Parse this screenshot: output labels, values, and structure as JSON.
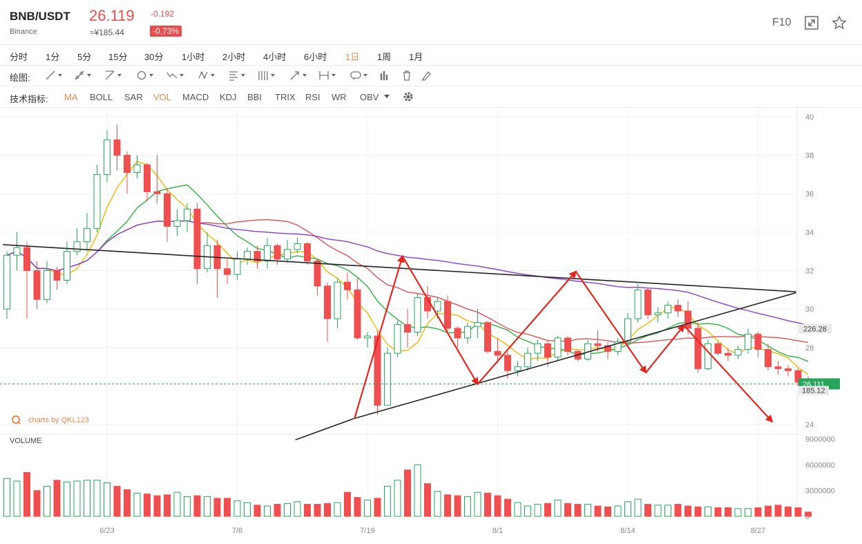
{
  "header": {
    "symbol": "BNB/USDT",
    "exchange": "Binance",
    "price": "26.119",
    "price_cny": "≈¥185.44",
    "change": "-0.192",
    "change_pct": "-0.73%",
    "f10": "F10",
    "icons": [
      "fullscreen-icon",
      "star-icon"
    ]
  },
  "timeframes": [
    {
      "label": "分时"
    },
    {
      "label": "1分"
    },
    {
      "label": "5分"
    },
    {
      "label": "15分"
    },
    {
      "label": "30分"
    },
    {
      "label": "1小时"
    },
    {
      "label": "2小时"
    },
    {
      "label": "4小时"
    },
    {
      "label": "6小时"
    },
    {
      "label": "1日",
      "active": true
    },
    {
      "label": "1周"
    },
    {
      "label": "1月"
    }
  ],
  "drawing": {
    "label": "绘图:",
    "tools": [
      "line-tool-icon",
      "ray-tool-icon",
      "channel-tool-icon",
      "circle-tool-icon",
      "wave-tool-icon",
      "pattern-tool-icon",
      "fib-tool-icon",
      "gann-tool-icon",
      "arrow-tool-icon",
      "measure-tool-icon",
      "comment-tool-icon",
      "bars-tool-icon",
      "trash-icon",
      "eraser-icon"
    ]
  },
  "indicators": {
    "label": "技术指标:",
    "items": [
      {
        "label": "MA",
        "active": true
      },
      {
        "label": "BOLL"
      },
      {
        "label": "SAR"
      },
      {
        "label": "VOL",
        "active": true
      },
      {
        "label": "MACD"
      },
      {
        "label": "KDJ"
      },
      {
        "label": "BBI"
      },
      {
        "label": "TRIX"
      },
      {
        "label": "RSI"
      },
      {
        "label": "WR"
      },
      {
        "label": "OBV"
      }
    ],
    "settings_icon": "gear-icon"
  },
  "watermark": "charts by QKL123",
  "colors": {
    "up": "#26a65b",
    "down": "#ef4f4f",
    "accent": "#e8894a",
    "ma5": "#f0b800",
    "ma10": "#2fb344",
    "ma20": "#e05252",
    "ma60": "#8a3fd1"
  },
  "chart_data": {
    "type": "candlestick",
    "price_axis": {
      "ticks": [
        "40",
        "38",
        "36",
        "34",
        "32",
        "30",
        "28",
        "24"
      ],
      "ylim": [
        23.5,
        40.5
      ]
    },
    "volume_axis": {
      "label": "VOLUME",
      "ticks": [
        "9000000",
        "6000000",
        "3000000",
        "0"
      ],
      "ylim": [
        0,
        9000000
      ]
    },
    "date_labels": [
      {
        "date": "6/23",
        "index": 10
      },
      {
        "date": "7/6",
        "index": 23
      },
      {
        "date": "7/19",
        "index": 36
      },
      {
        "date": "8/1",
        "index": 49
      },
      {
        "date": "8/14",
        "index": 62
      },
      {
        "date": "8/27",
        "index": 75
      }
    ],
    "axis_markers": {
      "high_level": "226.28",
      "current": "26.111",
      "current_cny": "185.12"
    },
    "current_price": 26.111,
    "ohlc": [
      [
        30.0,
        33.0,
        29.5,
        32.8
      ],
      [
        32.8,
        34.0,
        32.0,
        33.2
      ],
      [
        33.2,
        33.5,
        29.5,
        32.0
      ],
      [
        32.0,
        32.5,
        30.0,
        30.5
      ],
      [
        30.5,
        32.5,
        30.3,
        32.0
      ],
      [
        32.0,
        32.2,
        31.0,
        31.5
      ],
      [
        31.5,
        33.5,
        31.3,
        33.0
      ],
      [
        33.0,
        34.2,
        32.8,
        33.5
      ],
      [
        33.5,
        35.0,
        33.0,
        34.2
      ],
      [
        34.2,
        37.5,
        34.0,
        37.0
      ],
      [
        37.0,
        39.3,
        36.6,
        38.8
      ],
      [
        38.8,
        39.6,
        37.2,
        38.0
      ],
      [
        38.0,
        38.2,
        36.0,
        37.1
      ],
      [
        37.1,
        38.0,
        36.8,
        37.5
      ],
      [
        37.5,
        37.6,
        35.6,
        36.1
      ],
      [
        36.1,
        38.0,
        35.5,
        36.0
      ],
      [
        36.0,
        36.3,
        33.5,
        34.3
      ],
      [
        34.3,
        35.2,
        33.8,
        34.6
      ],
      [
        34.6,
        35.5,
        34.0,
        35.2
      ],
      [
        35.2,
        35.5,
        31.3,
        32.1
      ],
      [
        32.1,
        34.0,
        31.9,
        33.3
      ],
      [
        33.3,
        33.6,
        30.6,
        32.1
      ],
      [
        32.1,
        32.6,
        31.3,
        31.8
      ],
      [
        31.8,
        33.0,
        31.5,
        32.6
      ],
      [
        32.6,
        33.2,
        32.3,
        33.0
      ],
      [
        33.0,
        33.3,
        32.1,
        32.5
      ],
      [
        32.5,
        33.7,
        32.1,
        33.3
      ],
      [
        33.3,
        33.4,
        32.3,
        32.6
      ],
      [
        32.6,
        33.6,
        32.4,
        33.1
      ],
      [
        33.1,
        33.7,
        32.9,
        33.4
      ],
      [
        33.4,
        33.5,
        32.3,
        32.5
      ],
      [
        32.5,
        32.6,
        30.7,
        31.2
      ],
      [
        31.2,
        31.4,
        28.3,
        29.5
      ],
      [
        29.5,
        31.6,
        29.0,
        31.4
      ],
      [
        31.4,
        31.9,
        30.5,
        31.0
      ],
      [
        31.0,
        31.6,
        28.4,
        28.5
      ],
      [
        28.5,
        28.8,
        28.0,
        28.6
      ],
      [
        28.6,
        28.9,
        24.5,
        25.0
      ],
      [
        25.0,
        28.0,
        25.0,
        27.7
      ],
      [
        27.7,
        29.4,
        27.5,
        29.2
      ],
      [
        29.2,
        30.0,
        28.0,
        28.8
      ],
      [
        28.8,
        30.8,
        28.6,
        30.6
      ],
      [
        30.6,
        31.2,
        29.5,
        29.9
      ],
      [
        29.9,
        30.6,
        29.5,
        30.4
      ],
      [
        30.4,
        30.7,
        28.8,
        29.0
      ],
      [
        29.0,
        29.1,
        28.0,
        28.5
      ],
      [
        28.5,
        29.3,
        28.2,
        29.1
      ],
      [
        29.1,
        30.0,
        28.5,
        29.3
      ],
      [
        29.3,
        29.4,
        27.7,
        27.8
      ],
      [
        27.8,
        28.5,
        27.2,
        27.6
      ],
      [
        27.6,
        27.8,
        26.4,
        26.8
      ],
      [
        26.8,
        27.3,
        26.5,
        27.0
      ],
      [
        27.0,
        28.0,
        26.8,
        27.7
      ],
      [
        27.7,
        28.4,
        27.3,
        28.2
      ],
      [
        28.2,
        28.4,
        27.0,
        27.5
      ],
      [
        27.5,
        28.6,
        27.3,
        28.5
      ],
      [
        28.5,
        28.6,
        27.6,
        27.8
      ],
      [
        27.8,
        27.9,
        27.3,
        27.4
      ],
      [
        27.4,
        28.4,
        27.3,
        28.2
      ],
      [
        28.2,
        28.9,
        27.8,
        28.1
      ],
      [
        28.1,
        28.3,
        27.4,
        27.8
      ],
      [
        27.8,
        28.5,
        27.6,
        28.3
      ],
      [
        28.3,
        29.8,
        28.0,
        29.5
      ],
      [
        29.5,
        31.3,
        29.3,
        31.0
      ],
      [
        31.0,
        31.1,
        29.5,
        29.7
      ],
      [
        29.7,
        30.1,
        29.3,
        29.8
      ],
      [
        29.8,
        30.4,
        29.5,
        30.2
      ],
      [
        30.2,
        30.5,
        29.6,
        29.9
      ],
      [
        29.9,
        30.4,
        28.7,
        29.0
      ],
      [
        29.0,
        29.3,
        26.7,
        26.9
      ],
      [
        26.9,
        28.4,
        26.8,
        28.2
      ],
      [
        28.2,
        28.3,
        27.6,
        27.7
      ],
      [
        27.7,
        28.0,
        27.3,
        27.6
      ],
      [
        27.6,
        28.1,
        27.4,
        27.9
      ],
      [
        27.9,
        29.0,
        27.7,
        28.7
      ],
      [
        28.7,
        28.8,
        27.5,
        27.9
      ],
      [
        27.9,
        28.2,
        26.8,
        27.0
      ],
      [
        27.0,
        27.3,
        26.6,
        26.9
      ],
      [
        26.9,
        27.1,
        26.5,
        26.8
      ],
      [
        26.8,
        26.9,
        26.0,
        26.2
      ],
      [
        26.2,
        26.5,
        25.8,
        26.1
      ]
    ],
    "volume": [
      4400000,
      4100000,
      5100000,
      3000000,
      3500000,
      4200000,
      4000000,
      4100000,
      4200000,
      4200000,
      3900000,
      3500000,
      3100000,
      2700000,
      2600000,
      2400000,
      2500000,
      2800000,
      2300000,
      2400000,
      2300000,
      2100000,
      2100000,
      1800000,
      1600000,
      1300000,
      1200000,
      1400000,
      1500000,
      1700000,
      1400000,
      1400000,
      1500000,
      1600000,
      2800000,
      2200000,
      1900000,
      2100000,
      3500000,
      4200000,
      5400000,
      6000000,
      3800000,
      2900000,
      2500000,
      2400000,
      2300000,
      2800000,
      2700000,
      2400000,
      2000000,
      1600000,
      1200000,
      1400000,
      1500000,
      1900000,
      1500000,
      1400000,
      1400000,
      1200000,
      1100000,
      1200000,
      1700000,
      2000000,
      1400000,
      1300000,
      1300000,
      1400000,
      1200000,
      1100000,
      1100000,
      1000000,
      1000000,
      900000,
      900000,
      1000000,
      1200000,
      1300000,
      1100000,
      1000000,
      500000
    ],
    "moving_averages": [
      {
        "period": 5,
        "color": "#f0b800"
      },
      {
        "period": 10,
        "color": "#2fb344"
      },
      {
        "period": 20,
        "color": "#e05252"
      },
      {
        "period": 60,
        "color": "#8a3fd1"
      }
    ]
  }
}
